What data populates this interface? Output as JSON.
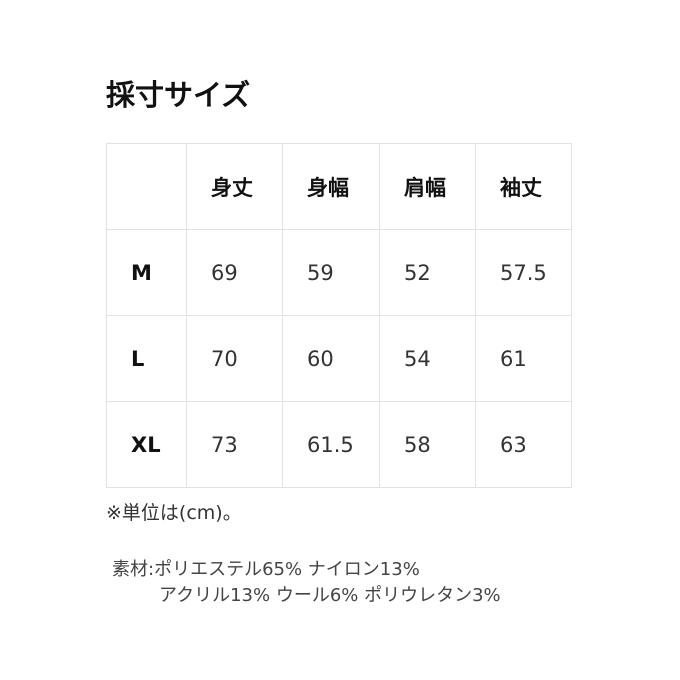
{
  "title": "採寸サイズ",
  "table": {
    "headers": [
      "",
      "身丈",
      "身幅",
      "肩幅",
      "袖丈"
    ],
    "rows": [
      [
        "M",
        "69",
        "59",
        "52",
        "57.5"
      ],
      [
        "L",
        "70",
        "60",
        "54",
        "61"
      ],
      [
        "XL",
        "73",
        "61.5",
        "58",
        "63"
      ]
    ]
  },
  "note": "※単位は(cm)。",
  "material": {
    "line1": "素材:ポリエステル65% ナイロン13%",
    "line2": "アクリル13% ウール6% ポリウレタン3%"
  }
}
